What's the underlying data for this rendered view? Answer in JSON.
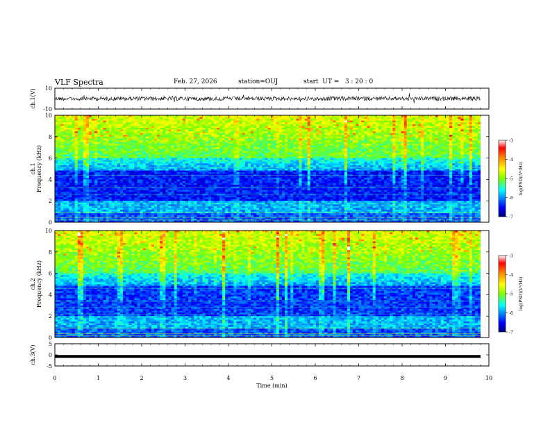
{
  "header": {
    "title": "VLF Spectra",
    "date": "Feb. 27, 2026",
    "station": "station=OUJ",
    "start": "start  UT =   3 : 20 : 0"
  },
  "chart_data": [
    {
      "type": "line",
      "panel": "ch1-waveform",
      "ylabel": "ch.1(V)",
      "ylim": [
        -10,
        10
      ],
      "yticks": [
        "10",
        "-10"
      ],
      "xlim": [
        0,
        10
      ],
      "series": [
        {
          "values_description_level": 0.5
        }
      ],
      "color": "#000000"
    },
    {
      "type": "heatmap",
      "panel": "ch1-spectrogram",
      "ylabel": "ch.1\nFrequency  (kHz)",
      "ylim": [
        0,
        10
      ],
      "yticks": [
        "0",
        "2",
        "4",
        "6",
        "8",
        "10"
      ],
      "xlim": [
        0,
        9.8
      ],
      "colorbar": {
        "label": "log(PSD)(V²/Hz)",
        "range": [
          -7,
          -3
        ],
        "ticks": [
          "-3",
          "-4",
          "-5",
          "-6",
          "-7"
        ]
      },
      "colormap": [
        "#00007f",
        "#0000ff",
        "#00ffff",
        "#7fff00",
        "#ffff00",
        "#ff7f00",
        "#ff0000",
        "#ffffff"
      ]
    },
    {
      "type": "heatmap",
      "panel": "ch2-spectrogram",
      "ylabel": "ch.2\nFrequency  (kHz)",
      "ylim": [
        0,
        10
      ],
      "yticks": [
        "0",
        "2",
        "4",
        "6",
        "8",
        "10"
      ],
      "xlim": [
        0,
        9.8
      ],
      "colorbar": {
        "label": "log(PSD)(V²/Hz)",
        "range": [
          -7,
          -3
        ],
        "ticks": [
          "-3",
          "-4",
          "-5",
          "-6",
          "-7"
        ]
      }
    },
    {
      "type": "line",
      "panel": "ch3-signal",
      "ylabel": "ch.3(V)",
      "ylim": [
        -5,
        5
      ],
      "yticks": [
        "5",
        "0",
        "-5"
      ],
      "xlim": [
        0,
        10
      ],
      "series": [
        {
          "value": -0.7
        }
      ],
      "xlabel": "Time  (min)",
      "xticks": [
        "0",
        "1",
        "2",
        "3",
        "4",
        "5",
        "6",
        "7",
        "8",
        "9",
        "10"
      ]
    }
  ]
}
